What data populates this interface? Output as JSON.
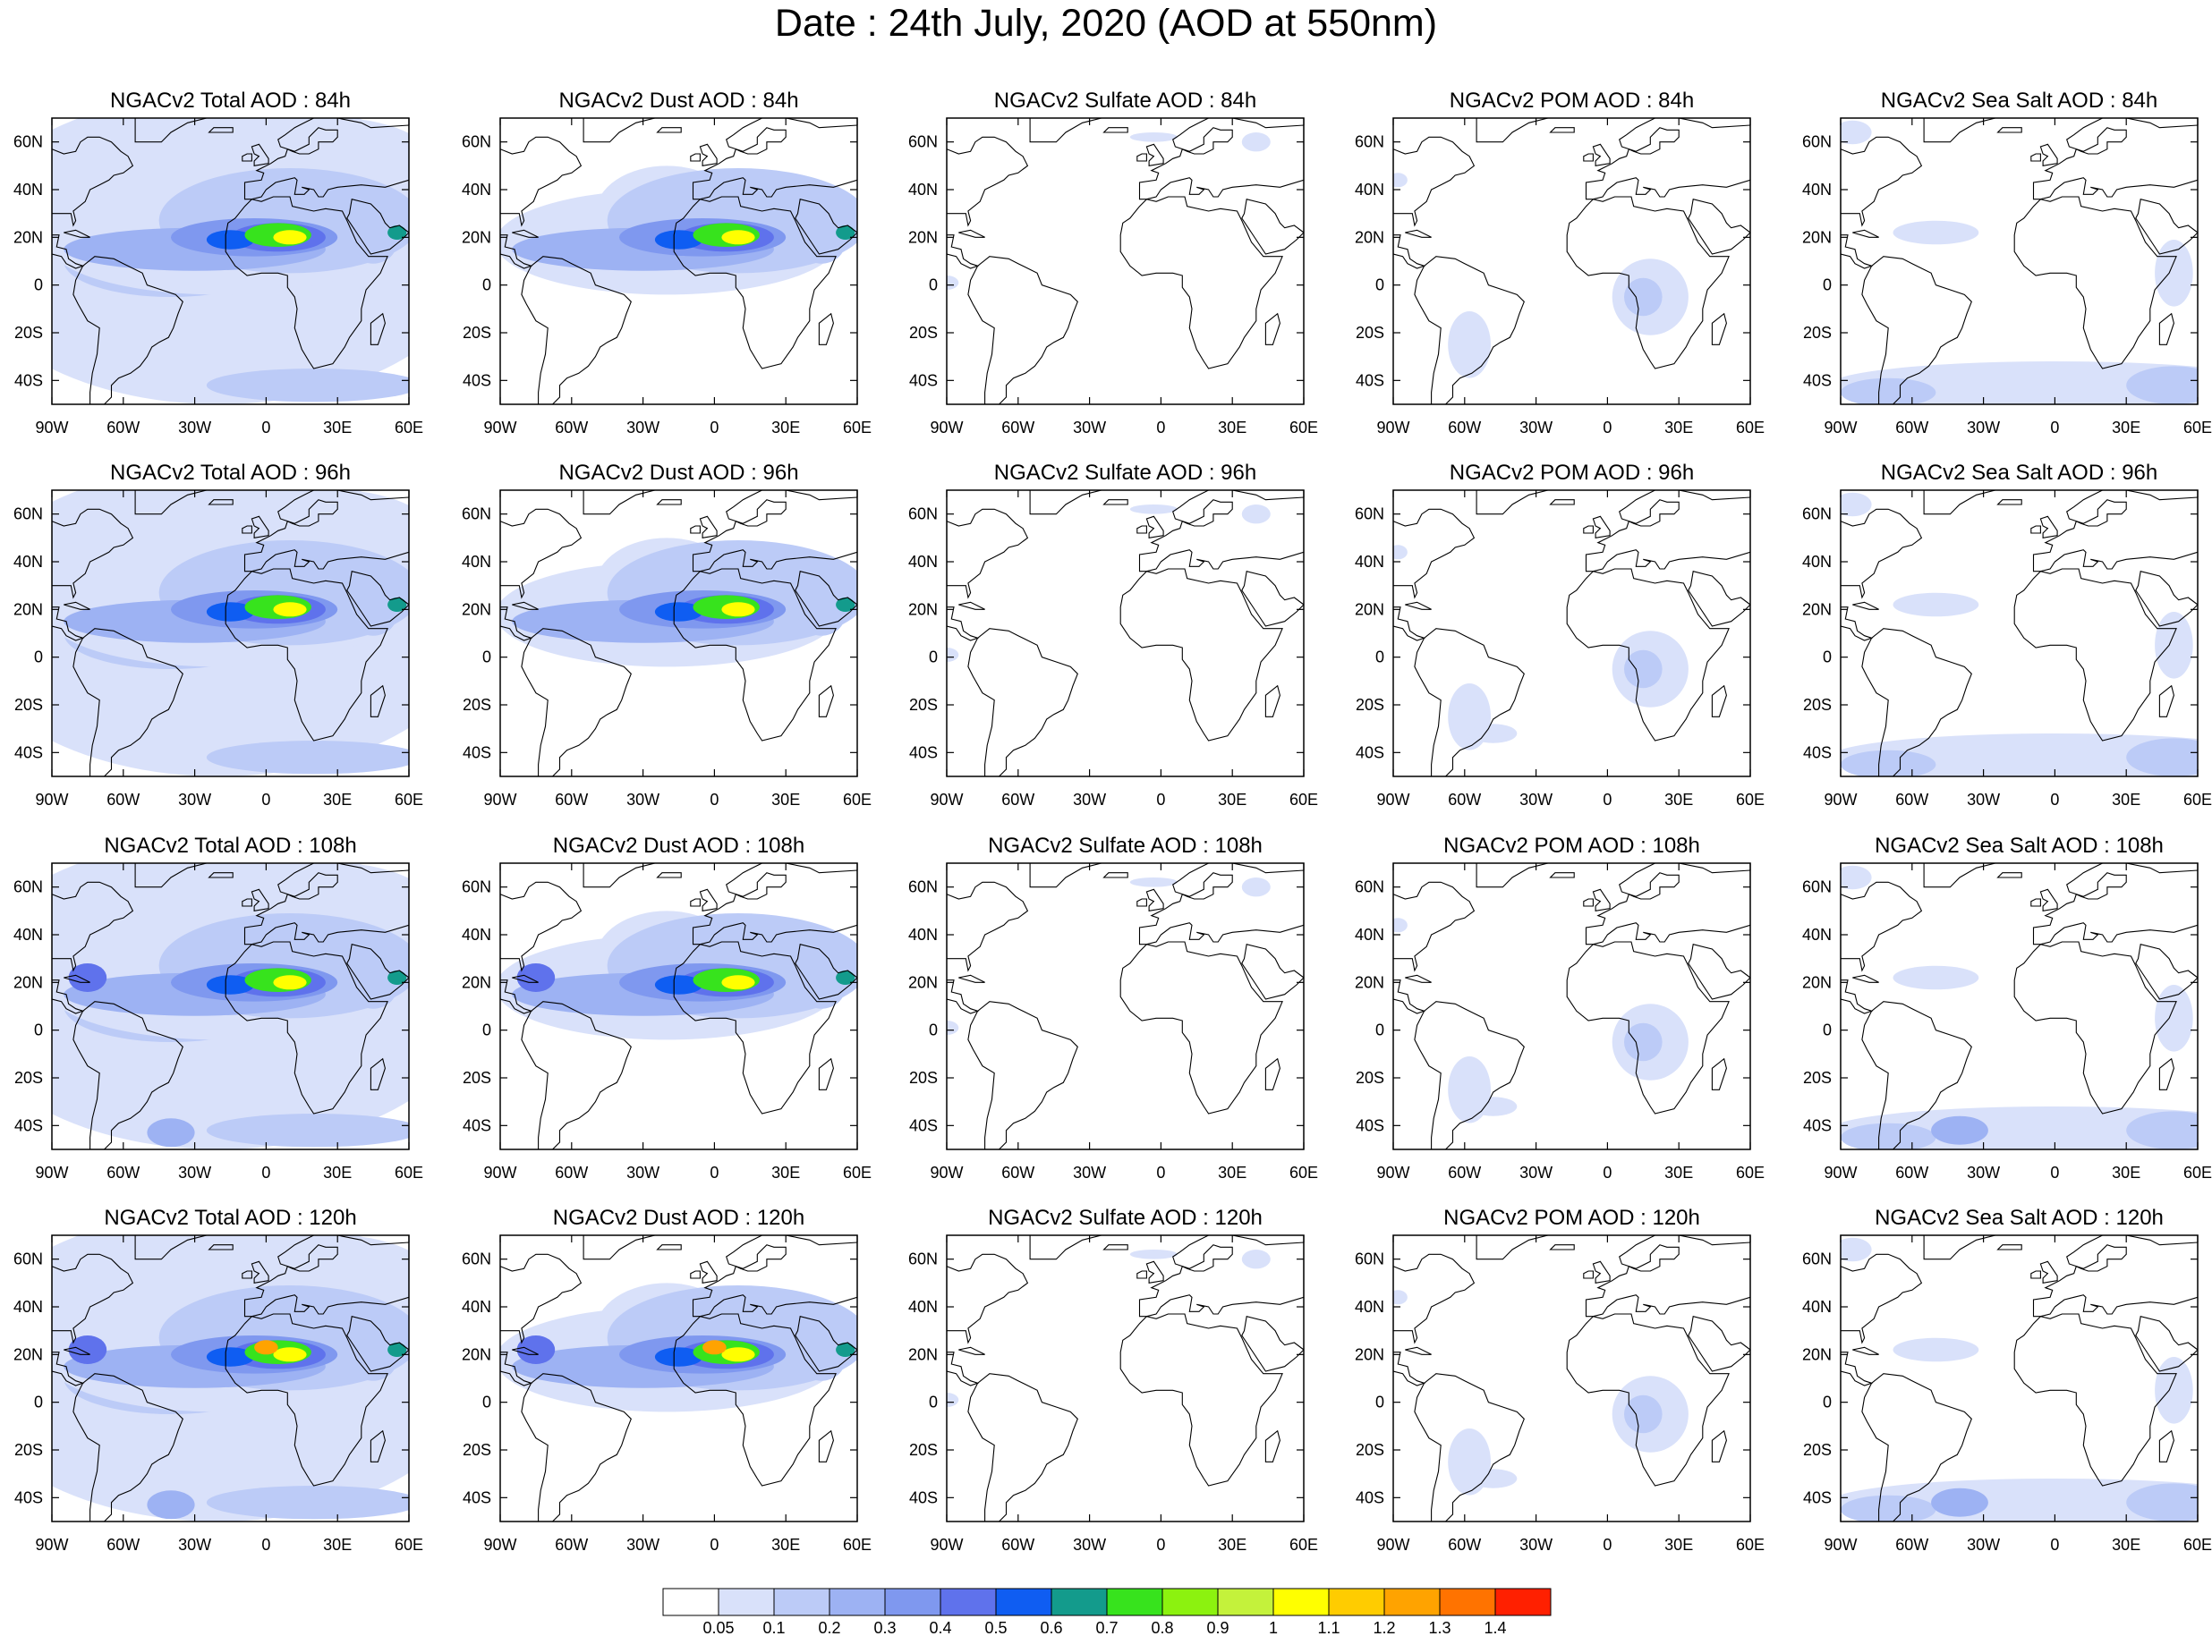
{
  "title": "Date : 24th July, 2020 (AOD at 550nm)",
  "lon_ticks": [
    "90W",
    "60W",
    "30W",
    "0",
    "30E",
    "60E"
  ],
  "lat_ticks": [
    "60N",
    "40N",
    "20N",
    "0",
    "20S",
    "40S"
  ],
  "panels": [
    [
      "NGACv2 Total AOD : 84h",
      "NGACv2 Dust AOD : 84h",
      "NGACv2 Sulfate AOD : 84h",
      "NGACv2 POM AOD : 84h",
      "NGACv2 Sea Salt AOD : 84h"
    ],
    [
      "NGACv2 Total AOD : 96h",
      "NGACv2 Dust AOD : 96h",
      "NGACv2 Sulfate AOD : 96h",
      "NGACv2 POM AOD : 96h",
      "NGACv2 Sea Salt AOD : 96h"
    ],
    [
      "NGACv2 Total AOD : 108h",
      "NGACv2 Dust AOD : 108h",
      "NGACv2 Sulfate AOD : 108h",
      "NGACv2 POM AOD : 108h",
      "NGACv2 Sea Salt AOD : 108h"
    ],
    [
      "NGACv2 Total AOD : 120h",
      "NGACv2 Dust AOD : 120h",
      "NGACv2 Sulfate AOD : 120h",
      "NGACv2 POM AOD : 120h",
      "NGACv2 Sea Salt  AOD : 120h"
    ]
  ],
  "colorbar": {
    "labels": [
      "0.05",
      "0.1",
      "0.2",
      "0.3",
      "0.4",
      "0.5",
      "0.6",
      "0.7",
      "0.8",
      "0.9",
      "1",
      "1.1",
      "1.2",
      "1.3",
      "1.4"
    ],
    "colors": [
      "#ffffff",
      "#d9e1fa",
      "#bccbf7",
      "#9db2f3",
      "#7f98ef",
      "#5f72ec",
      "#0f5df2",
      "#139b8c",
      "#37e31d",
      "#8cf20f",
      "#c4f23b",
      "#ffff00",
      "#ffcc00",
      "#ffa300",
      "#ff7300",
      "#ff2000"
    ]
  },
  "colors": {
    "land_outline": "#000000",
    "frame": "#000000"
  }
}
